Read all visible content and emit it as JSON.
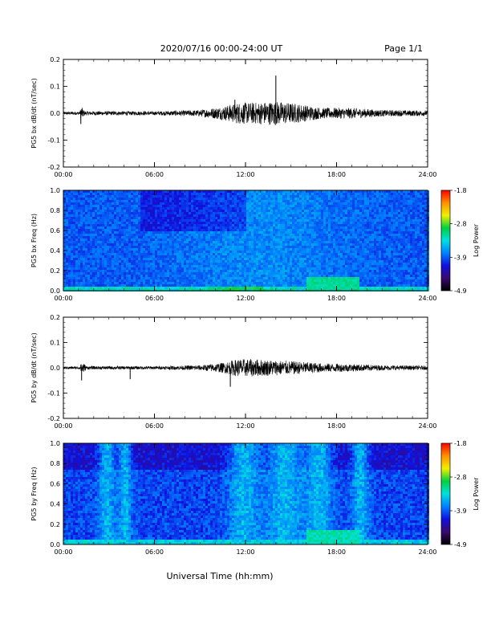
{
  "header": {
    "date_range": "2020/07/16  00:00-24:00 UT",
    "page": "Page 1/1"
  },
  "x_axis": {
    "label": "Universal Time (hh:mm)",
    "ticks": [
      "00:00",
      "06:00",
      "12:00",
      "18:00",
      "24:00"
    ]
  },
  "colorbar": {
    "label": "Log Power",
    "ticks": [
      "-1.8",
      "-2.8",
      "-3.9",
      "-4.9"
    ],
    "colors": [
      "#000000",
      "#3a0a6e",
      "#1010e0",
      "#0080ff",
      "#00e0e0",
      "#00d040",
      "#f0f000",
      "#ff9000",
      "#ff0000"
    ]
  },
  "chart_data": [
    {
      "type": "line",
      "ylabel": "PG5 bx dB/dt (nT/sec)",
      "ylim": [
        -0.2,
        0.2
      ],
      "y_ticks": [
        "0.2",
        "0.1",
        "0.0",
        "-0.1",
        "-0.2"
      ],
      "x_range_hours": [
        0,
        24
      ],
      "series": [
        {
          "color": "#000000",
          "envelope": [
            {
              "x": 0,
              "amp": 0.006
            },
            {
              "x": 1.1,
              "amp": 0.006
            },
            {
              "x": 1.15,
              "amp": 0.03
            },
            {
              "x": 1.4,
              "amp": 0.008
            },
            {
              "x": 6,
              "amp": 0.007
            },
            {
              "x": 9,
              "amp": 0.012
            },
            {
              "x": 10.5,
              "amp": 0.025
            },
            {
              "x": 11.5,
              "amp": 0.04
            },
            {
              "x": 12.5,
              "amp": 0.04
            },
            {
              "x": 14,
              "amp": 0.045
            },
            {
              "x": 15.5,
              "amp": 0.035
            },
            {
              "x": 17,
              "amp": 0.02
            },
            {
              "x": 19,
              "amp": 0.02
            },
            {
              "x": 21,
              "amp": 0.012
            },
            {
              "x": 24,
              "amp": 0.01
            }
          ],
          "peaks": [
            {
              "x": 14.0,
              "y": 0.14
            },
            {
              "x": 11.3,
              "y": 0.05
            },
            {
              "x": 1.15,
              "y": -0.04
            }
          ]
        }
      ]
    },
    {
      "type": "heatmap",
      "ylabel": "PG5 bx Freq (Hz)",
      "ylim": [
        0,
        1
      ],
      "y_ticks": [
        "1.0",
        "0.8",
        "0.6",
        "0.4",
        "0.2",
        "0.0"
      ],
      "zlim": [
        -4.9,
        -1.8
      ]
    },
    {
      "type": "line",
      "ylabel": "PG5 by dB/dt (nT/sec)",
      "ylim": [
        -0.2,
        0.2
      ],
      "y_ticks": [
        "0.2",
        "0.1",
        "0.0",
        "-0.1",
        "-0.2"
      ],
      "x_range_hours": [
        0,
        24
      ],
      "series": [
        {
          "color": "#000000",
          "envelope": [
            {
              "x": 0,
              "amp": 0.005
            },
            {
              "x": 1.1,
              "amp": 0.006
            },
            {
              "x": 1.2,
              "amp": 0.03
            },
            {
              "x": 1.5,
              "amp": 0.007
            },
            {
              "x": 6,
              "amp": 0.006
            },
            {
              "x": 9,
              "amp": 0.01
            },
            {
              "x": 10.5,
              "amp": 0.02
            },
            {
              "x": 11.5,
              "amp": 0.035
            },
            {
              "x": 12.5,
              "amp": 0.035
            },
            {
              "x": 14,
              "amp": 0.03
            },
            {
              "x": 15.5,
              "amp": 0.025
            },
            {
              "x": 17,
              "amp": 0.018
            },
            {
              "x": 19,
              "amp": 0.015
            },
            {
              "x": 21,
              "amp": 0.01
            },
            {
              "x": 24,
              "amp": 0.008
            }
          ],
          "peaks": [
            {
              "x": 11.0,
              "y": -0.075
            },
            {
              "x": 1.2,
              "y": -0.05
            },
            {
              "x": 4.4,
              "y": -0.045
            }
          ]
        }
      ]
    },
    {
      "type": "heatmap",
      "ylabel": "PG5 by Freq (Hz)",
      "ylim": [
        0,
        1
      ],
      "y_ticks": [
        "1.0",
        "0.8",
        "0.6",
        "0.4",
        "0.2",
        "0.0"
      ],
      "zlim": [
        -4.9,
        -1.8
      ]
    }
  ]
}
